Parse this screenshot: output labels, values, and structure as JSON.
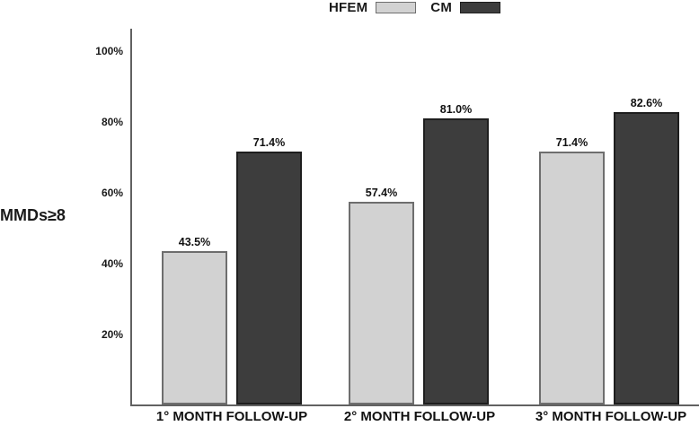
{
  "chart_data": {
    "type": "bar",
    "title": "",
    "ylabel": "MMDs≥8",
    "xlabel": "",
    "categories": [
      "1° MONTH FOLLOW-UP",
      "2° MONTH FOLLOW-UP",
      "3° MONTH FOLLOW-UP"
    ],
    "series": [
      {
        "name": "HFEM",
        "values": [
          43.5,
          57.4,
          71.4
        ],
        "fill": "#d2d2d2",
        "border": "#6e6e6e"
      },
      {
        "name": "CM",
        "values": [
          71.4,
          81.0,
          82.6
        ],
        "fill": "#3d3d3d",
        "border": "#1e1e1e"
      }
    ],
    "value_label_suffix": "%",
    "yticks": [
      {
        "value": 20,
        "label": "20%"
      },
      {
        "value": 40,
        "label": "40%"
      },
      {
        "value": 60,
        "label": "60%"
      },
      {
        "value": 80,
        "label": "80%"
      },
      {
        "value": 100,
        "label": "100%"
      }
    ],
    "ylim": [
      0,
      106
    ],
    "grid": false,
    "legend_position": "top-center",
    "axis_color": "#616161",
    "background_color": "#ffffff"
  },
  "legend": {
    "items": [
      {
        "label": "HFEM",
        "swatch": "light"
      },
      {
        "label": "CM",
        "swatch": "dark"
      }
    ]
  }
}
